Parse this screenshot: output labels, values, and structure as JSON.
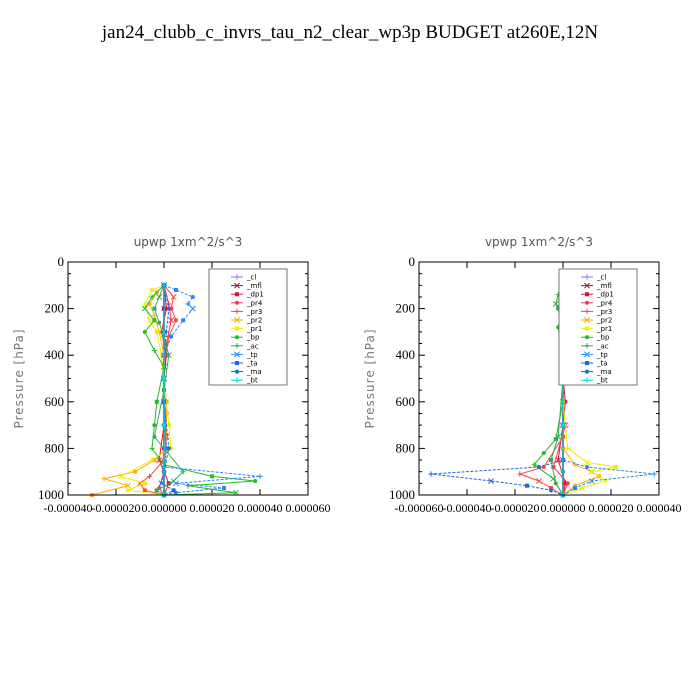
{
  "figure": {
    "title": "jan24_clubb_c_invrs_tau_n2_clear_wp3p  BUDGET at260E,12N"
  },
  "chart_data": [
    {
      "type": "line",
      "title": "upwp   1xm^2/s^3",
      "ylabel": "Pressure [hPa]",
      "ylim": [
        1000,
        0
      ],
      "xlim": [
        -4e-05,
        6e-05
      ],
      "yticks": [
        "0",
        "200",
        "400",
        "600",
        "800",
        "1000"
      ],
      "xticks": [
        "-0.000040",
        "-0.000020",
        "0.000000",
        "0.000020",
        "0.000040",
        "0.000060"
      ],
      "grid": false,
      "legend_position": "top-right",
      "series": [
        {
          "name": "_cl",
          "color": "#9966ff",
          "x": [
            0,
            0,
            0,
            0,
            0,
            0,
            0,
            0
          ],
          "y": [
            100,
            200,
            300,
            400,
            500,
            600,
            800,
            1000
          ]
        },
        {
          "name": "_mfl",
          "color": "#8b1a4a",
          "x": [
            0,
            0,
            0,
            0,
            0,
            0,
            0,
            0
          ],
          "y": [
            100,
            200,
            300,
            400,
            500,
            600,
            800,
            1000
          ]
        },
        {
          "name": "_dp1",
          "color": "#dd1133",
          "x": [
            0,
            1e-06,
            -1e-06,
            1e-06,
            0,
            1e-06,
            0,
            -2e-06,
            2e-06,
            0
          ],
          "y": [
            100,
            200,
            300,
            400,
            500,
            600,
            700,
            850,
            950,
            1000
          ]
        },
        {
          "name": "_pr4",
          "color": "#ff3355",
          "x": [
            0,
            2e-06,
            3e-06,
            1e-06,
            0,
            0,
            1e-06,
            0,
            -2e-06,
            0
          ],
          "y": [
            100,
            180,
            250,
            350,
            450,
            600,
            750,
            900,
            970,
            1000
          ]
        },
        {
          "name": "_pr3",
          "color": "#ff4444",
          "x": [
            0,
            4e-06,
            3e-06,
            5e-06,
            2e-06,
            0,
            1e-06,
            0,
            -6e-06,
            -1e-05,
            -8e-06,
            0
          ],
          "y": [
            100,
            150,
            200,
            250,
            320,
            450,
            650,
            850,
            920,
            950,
            980,
            1000
          ]
        },
        {
          "name": "_pr2",
          "color": "#ffaa00",
          "x": [
            0,
            -3e-06,
            -6e-06,
            -4e-06,
            -2e-06,
            0,
            0,
            1e-06,
            1e-06,
            -4e-06,
            -1.2e-05,
            -2.5e-05,
            -1.5e-05,
            -3e-05
          ],
          "y": [
            100,
            130,
            180,
            230,
            300,
            400,
            500,
            650,
            800,
            850,
            900,
            930,
            960,
            1000
          ]
        },
        {
          "name": "_pr1",
          "color": "#eeee00",
          "x": [
            0,
            -5e-06,
            -8e-06,
            -6e-06,
            -3e-06,
            -1e-06,
            0,
            1e-06,
            2e-06,
            3e-06,
            -5e-06,
            -1.8e-05,
            -8e-06,
            -1.5e-05,
            0
          ],
          "y": [
            100,
            120,
            180,
            250,
            300,
            400,
            500,
            600,
            700,
            800,
            850,
            920,
            950,
            980,
            1000
          ]
        },
        {
          "name": "_bp",
          "color": "#22bb22",
          "x": [
            0,
            -5e-06,
            -8e-06,
            -4e-06,
            -8e-06,
            -4e-06,
            0,
            -3e-06,
            -4e-06,
            -5e-06,
            0,
            2e-05,
            3.8e-05,
            1e-05,
            3e-05,
            0
          ],
          "y": [
            100,
            150,
            200,
            250,
            300,
            380,
            450,
            600,
            700,
            800,
            870,
            920,
            940,
            960,
            990,
            1000
          ]
        },
        {
          "name": "_ac",
          "color": "#33aa55",
          "x": [
            0,
            -2e-06,
            -4e-06,
            -2e-06,
            0,
            2e-06,
            0,
            -4e-06,
            8e-06,
            4e-06,
            -3e-06,
            0
          ],
          "y": [
            100,
            150,
            200,
            260,
            320,
            400,
            550,
            750,
            900,
            940,
            980,
            1000
          ]
        },
        {
          "name": "_tp",
          "color": "#2288ff",
          "x": [
            0,
            5e-06,
            1.2e-05,
            1e-05,
            1.2e-05,
            8e-06,
            3e-06,
            0,
            0,
            1e-06,
            0,
            4e-05,
            5e-06,
            2.5e-05,
            5e-06,
            0
          ],
          "y": [
            100,
            120,
            150,
            180,
            200,
            250,
            320,
            400,
            600,
            800,
            880,
            920,
            950,
            970,
            990,
            1000
          ]
        },
        {
          "name": "_ta",
          "color": "#2266dd",
          "x": [
            0,
            2e-06,
            1e-06,
            0,
            0,
            2e-06,
            0,
            -1e-06,
            4e-06,
            0
          ],
          "y": [
            100,
            200,
            300,
            400,
            600,
            800,
            900,
            950,
            980,
            1000
          ]
        },
        {
          "name": "_ma",
          "color": "#0077cc",
          "x": [
            0,
            0,
            0,
            0,
            0,
            0
          ],
          "y": [
            100,
            300,
            500,
            700,
            900,
            1000
          ]
        },
        {
          "name": "_bt",
          "color": "#00dddd",
          "x": [
            0,
            0,
            0,
            0,
            0,
            0
          ],
          "y": [
            100,
            300,
            500,
            700,
            900,
            1000
          ]
        }
      ]
    },
    {
      "type": "line",
      "title": "vpwp   1xm^2/s^3",
      "ylabel": "Pressure [hPa]",
      "ylim": [
        1000,
        0
      ],
      "xlim": [
        -6e-05,
        4e-05
      ],
      "yticks": [
        "0",
        "200",
        "400",
        "600",
        "800",
        "1000"
      ],
      "xticks": [
        "-0.000060",
        "-0.000040",
        "-0.000020",
        "0.000000",
        "0.000020",
        "0.000040"
      ],
      "grid": false,
      "legend_position": "top-right",
      "series": [
        {
          "name": "_cl",
          "color": "#9966ff",
          "x": [
            0,
            0,
            0,
            0,
            0,
            0,
            0,
            0
          ],
          "y": [
            100,
            200,
            300,
            400,
            500,
            600,
            800,
            1000
          ]
        },
        {
          "name": "_mfl",
          "color": "#8b1a4a",
          "x": [
            0,
            0,
            0,
            0,
            0,
            0,
            0,
            0
          ],
          "y": [
            100,
            200,
            300,
            400,
            500,
            600,
            800,
            1000
          ]
        },
        {
          "name": "_dp1",
          "color": "#dd1133",
          "x": [
            0,
            1e-06,
            0,
            1e-06,
            0,
            1e-06,
            0,
            -2e-06,
            1e-06,
            0
          ],
          "y": [
            100,
            200,
            300,
            400,
            500,
            600,
            700,
            850,
            950,
            1000
          ]
        },
        {
          "name": "_pr4",
          "color": "#ff3355",
          "x": [
            0,
            1e-06,
            0,
            1e-06,
            0,
            0,
            1e-06,
            -4e-06,
            2e-06,
            0
          ],
          "y": [
            100,
            200,
            300,
            400,
            500,
            600,
            700,
            880,
            950,
            1000
          ]
        },
        {
          "name": "_pr3",
          "color": "#ff4444",
          "x": [
            0,
            1e-06,
            0,
            0,
            0,
            0,
            0,
            -8e-06,
            -1.8e-05,
            -1e-05,
            -5e-06,
            0
          ],
          "y": [
            100,
            200,
            300,
            400,
            500,
            600,
            750,
            880,
            910,
            940,
            970,
            1000
          ]
        },
        {
          "name": "_pr2",
          "color": "#ffaa00",
          "x": [
            0,
            2e-06,
            3e-06,
            1e-06,
            0,
            0,
            0,
            5e-06,
            1.2e-05,
            1.5e-05,
            5e-06,
            0
          ],
          "y": [
            100,
            140,
            180,
            250,
            400,
            600,
            800,
            870,
            900,
            920,
            960,
            1000
          ]
        },
        {
          "name": "_pr1",
          "color": "#eeee00",
          "x": [
            0,
            2e-06,
            1e-06,
            0,
            0,
            0,
            2e-06,
            1e-05,
            2.2e-05,
            1.2e-05,
            1.8e-05,
            8e-06,
            0
          ],
          "y": [
            100,
            150,
            200,
            300,
            400,
            600,
            800,
            860,
            880,
            900,
            940,
            970,
            1000
          ]
        },
        {
          "name": "_bp",
          "color": "#22bb22",
          "x": [
            0,
            -2e-06,
            -3e-06,
            -1e-06,
            -2e-06,
            0,
            0,
            -3e-06,
            -8e-06,
            -1.2e-05,
            -4e-06,
            0
          ],
          "y": [
            100,
            140,
            180,
            220,
            280,
            400,
            600,
            760,
            820,
            870,
            930,
            1000
          ]
        },
        {
          "name": "_ac",
          "color": "#33aa55",
          "x": [
            0,
            -1e-06,
            -2e-06,
            0,
            0,
            -2e-06,
            -5e-06,
            -3e-06,
            0
          ],
          "y": [
            100,
            150,
            200,
            300,
            500,
            750,
            850,
            950,
            1000
          ]
        },
        {
          "name": "_tp",
          "color": "#2288ff",
          "x": [
            0,
            1e-06,
            0,
            0,
            0,
            0,
            1e-05,
            3.8e-05,
            1.2e-05,
            5e-06,
            0
          ],
          "y": [
            100,
            200,
            300,
            500,
            700,
            850,
            880,
            910,
            940,
            970,
            1000
          ]
        },
        {
          "name": "_ta",
          "color": "#2266dd",
          "x": [
            0,
            0,
            0,
            0,
            0,
            -1e-05,
            -5.5e-05,
            -3e-05,
            -1.5e-05,
            -5e-06,
            0
          ],
          "y": [
            100,
            300,
            500,
            700,
            850,
            880,
            910,
            940,
            960,
            980,
            1000
          ]
        },
        {
          "name": "_ma",
          "color": "#0077cc",
          "x": [
            0,
            0,
            0,
            0,
            0,
            0
          ],
          "y": [
            100,
            300,
            500,
            700,
            900,
            1000
          ]
        },
        {
          "name": "_bt",
          "color": "#00dddd",
          "x": [
            0,
            0,
            0,
            0,
            0,
            0
          ],
          "y": [
            100,
            300,
            500,
            700,
            900,
            1000
          ]
        }
      ]
    }
  ]
}
